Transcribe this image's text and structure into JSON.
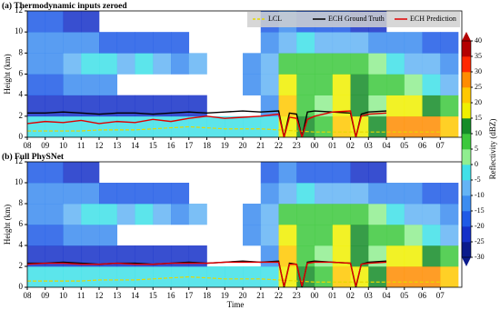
{
  "chart_data": [
    {
      "type": "heatmap-line",
      "title": "(a) Thermodynamic inputs zeroed",
      "ylabel": "Height (km)",
      "xlim": [
        0,
        24.2
      ],
      "ylim": [
        0,
        12
      ],
      "yticks": [
        0,
        2,
        4,
        6,
        8,
        10,
        12
      ],
      "xticks": [
        {
          "value": 0,
          "label": "08"
        },
        {
          "value": 1,
          "label": "09"
        },
        {
          "value": 2,
          "label": "10"
        },
        {
          "value": 3,
          "label": "11"
        },
        {
          "value": 4,
          "label": "12"
        },
        {
          "value": 5,
          "label": "13"
        },
        {
          "value": 6,
          "label": "14"
        },
        {
          "value": 7,
          "label": "15"
        },
        {
          "value": 8,
          "label": "16"
        },
        {
          "value": 9,
          "label": "17"
        },
        {
          "value": 10,
          "label": "18"
        },
        {
          "value": 11,
          "label": "19"
        },
        {
          "value": 12,
          "label": "20"
        },
        {
          "value": 13,
          "label": "21"
        },
        {
          "value": 14,
          "label": "22"
        },
        {
          "value": 15,
          "label": "23"
        },
        {
          "value": 16,
          "label": "00"
        },
        {
          "value": 17,
          "label": "01"
        },
        {
          "value": 18,
          "label": "02"
        },
        {
          "value": 19,
          "label": "03"
        },
        {
          "value": 20,
          "label": "04"
        },
        {
          "value": 21,
          "label": "05"
        },
        {
          "value": 22,
          "label": "06"
        },
        {
          "value": 23,
          "label": "07"
        }
      ],
      "legend": true,
      "series": [
        {
          "name": "LCL",
          "color": "#e6d800",
          "dash": true,
          "x": [
            0,
            1,
            2,
            3,
            4,
            5,
            6,
            7,
            8,
            9,
            10,
            11,
            12,
            13,
            14,
            15,
            16,
            17,
            18,
            19,
            20,
            21,
            22,
            23
          ],
          "values": [
            0.6,
            0.6,
            0.6,
            0.6,
            0.7,
            0.7,
            0.7,
            0.8,
            0.9,
            1.0,
            0.9,
            0.8,
            0.8,
            0.8,
            0.7,
            0.6,
            0.5,
            0.5,
            0.5,
            0.5,
            0.5,
            0.5,
            0.5,
            0.5
          ]
        },
        {
          "name": "ECH Ground Truth",
          "color": "#000000",
          "x": [
            0,
            1,
            2,
            3,
            4,
            5,
            6,
            7,
            8,
            9,
            10,
            11,
            12,
            13,
            14,
            14.3,
            14.6,
            15,
            15.3,
            15.6,
            16,
            17,
            18,
            18.3,
            18.6,
            19,
            20
          ],
          "values": [
            2.3,
            2.3,
            2.4,
            2.3,
            2.2,
            2.3,
            2.3,
            2.2,
            2.3,
            2.4,
            2.3,
            2.4,
            2.5,
            2.4,
            2.5,
            0,
            2.3,
            2.2,
            0,
            2.4,
            2.5,
            2.4,
            2.3,
            0,
            2.2,
            2.4,
            2.5
          ]
        },
        {
          "name": "ECH Prediction",
          "color": "#e00000",
          "x": [
            0,
            1,
            2,
            3,
            4,
            5,
            6,
            7,
            8,
            9,
            10,
            11,
            12,
            13,
            14,
            14.3,
            14.6,
            15,
            15.3,
            15.6,
            16,
            17,
            18,
            18.3,
            18.6,
            19,
            20
          ],
          "values": [
            1.3,
            1.5,
            1.4,
            1.6,
            1.3,
            1.5,
            1.4,
            1.7,
            1.5,
            1.8,
            2.0,
            1.8,
            1.9,
            2.0,
            2.2,
            0,
            1.9,
            1.8,
            0,
            1.7,
            2.0,
            2.4,
            2.5,
            0,
            2.0,
            2.2,
            2.3
          ]
        }
      ]
    },
    {
      "type": "heatmap-line",
      "title": "(b) Full PhySNet",
      "ylabel": "Height (km)",
      "xlabel": "Time",
      "xlim": [
        0,
        24.2
      ],
      "ylim": [
        0,
        12
      ],
      "yticks": [
        0,
        2,
        4,
        6,
        8,
        10,
        12
      ],
      "xticks": [
        {
          "value": 0,
          "label": "08"
        },
        {
          "value": 1,
          "label": "09"
        },
        {
          "value": 2,
          "label": "10"
        },
        {
          "value": 3,
          "label": "11"
        },
        {
          "value": 4,
          "label": "12"
        },
        {
          "value": 5,
          "label": "13"
        },
        {
          "value": 6,
          "label": "14"
        },
        {
          "value": 7,
          "label": "15"
        },
        {
          "value": 8,
          "label": "16"
        },
        {
          "value": 9,
          "label": "17"
        },
        {
          "value": 10,
          "label": "18"
        },
        {
          "value": 11,
          "label": "19"
        },
        {
          "value": 12,
          "label": "20"
        },
        {
          "value": 13,
          "label": "21"
        },
        {
          "value": 14,
          "label": "22"
        },
        {
          "value": 15,
          "label": "23"
        },
        {
          "value": 16,
          "label": "00"
        },
        {
          "value": 17,
          "label": "01"
        },
        {
          "value": 18,
          "label": "02"
        },
        {
          "value": 19,
          "label": "03"
        },
        {
          "value": 20,
          "label": "04"
        },
        {
          "value": 21,
          "label": "05"
        },
        {
          "value": 22,
          "label": "06"
        },
        {
          "value": 23,
          "label": "07"
        }
      ],
      "legend": false,
      "series": [
        {
          "color": "#e6d800",
          "dash": true,
          "x": [
            0,
            1,
            2,
            3,
            4,
            5,
            6,
            7,
            8,
            9,
            10,
            11,
            12,
            13,
            14,
            15,
            16,
            17,
            18,
            19,
            20,
            21,
            22,
            23
          ],
          "values": [
            0.6,
            0.6,
            0.6,
            0.6,
            0.7,
            0.7,
            0.7,
            0.8,
            0.9,
            1.0,
            0.9,
            0.8,
            0.8,
            0.8,
            0.7,
            0.6,
            0.5,
            0.5,
            0.5,
            0.5,
            0.5,
            0.5,
            0.5,
            0.5
          ]
        },
        {
          "color": "#000000",
          "x": [
            0,
            1,
            2,
            3,
            4,
            5,
            6,
            7,
            8,
            9,
            10,
            11,
            12,
            13,
            14,
            14.3,
            14.6,
            15,
            15.3,
            15.6,
            16,
            17,
            18,
            18.3,
            18.6,
            19,
            20
          ],
          "values": [
            2.3,
            2.3,
            2.4,
            2.3,
            2.2,
            2.3,
            2.3,
            2.2,
            2.3,
            2.4,
            2.3,
            2.4,
            2.5,
            2.4,
            2.5,
            0,
            2.3,
            2.2,
            0,
            2.4,
            2.5,
            2.4,
            2.3,
            0,
            2.2,
            2.4,
            2.5
          ]
        },
        {
          "color": "#e00000",
          "x": [
            0,
            1,
            2,
            3,
            4,
            5,
            6,
            7,
            8,
            9,
            10,
            11,
            12,
            13,
            14,
            14.3,
            14.6,
            15,
            15.3,
            15.6,
            16,
            17,
            18,
            18.3,
            18.6,
            19,
            20
          ],
          "values": [
            2.2,
            2.3,
            2.3,
            2.2,
            2.2,
            2.3,
            2.2,
            2.2,
            2.3,
            2.3,
            2.3,
            2.4,
            2.4,
            2.4,
            2.4,
            0.1,
            2.2,
            2.2,
            0.1,
            2.3,
            2.4,
            2.4,
            2.3,
            0.1,
            2.2,
            2.3,
            2.4
          ]
        }
      ]
    }
  ],
  "reflectivity": {
    "xbins": [
      0,
      1,
      2,
      3,
      4,
      5,
      6,
      7,
      8,
      9,
      10,
      11,
      12,
      13,
      14,
      15,
      16,
      17,
      18,
      19,
      20,
      21,
      22,
      23,
      24
    ],
    "ybins": [
      0,
      2,
      4,
      6,
      8,
      10,
      12
    ],
    "values": [
      [
        -5,
        -5,
        -5,
        -5,
        -5,
        -5,
        -5,
        -5,
        -5,
        -5,
        -5,
        -5,
        -5,
        -5,
        15,
        10,
        5,
        20,
        15,
        10,
        25,
        25,
        25,
        20
      ],
      [
        -25,
        -25,
        -25,
        -25,
        -25,
        -25,
        -25,
        -25,
        -25,
        -25,
        null,
        null,
        null,
        -15,
        20,
        5,
        0,
        15,
        10,
        0,
        15,
        15,
        10,
        5
      ],
      [
        -20,
        -20,
        -15,
        -15,
        -15,
        null,
        null,
        null,
        null,
        null,
        null,
        null,
        -15,
        -10,
        15,
        5,
        5,
        15,
        10,
        5,
        5,
        0,
        -5,
        -10
      ],
      [
        -15,
        -15,
        -10,
        -5,
        -5,
        -10,
        -5,
        -10,
        -15,
        -10,
        null,
        null,
        -15,
        -10,
        5,
        5,
        5,
        5,
        5,
        0,
        -5,
        -10,
        -10,
        -15
      ],
      [
        -15,
        -15,
        -15,
        -15,
        -20,
        -20,
        -20,
        -20,
        -20,
        null,
        null,
        null,
        null,
        -15,
        -10,
        -5,
        -10,
        -10,
        -10,
        -15,
        -15,
        -15,
        -20,
        -20
      ],
      [
        -20,
        -20,
        -25,
        -25,
        null,
        null,
        null,
        null,
        null,
        null,
        null,
        null,
        null,
        -20,
        -15,
        -20,
        -20,
        -20,
        -25,
        -25,
        null,
        null,
        null,
        null
      ]
    ],
    "colorbar": {
      "label": "Reflectivity (dBZ)",
      "lim": [
        -30,
        40
      ],
      "ticks": [
        -30,
        -25,
        -20,
        -15,
        -10,
        -5,
        0,
        5,
        10,
        15,
        20,
        25,
        30,
        35,
        40
      ],
      "colors": [
        "#0a1a8c",
        "#1530c8",
        "#1f5ae6",
        "#3c8cf0",
        "#64b4f5",
        "#40e0e8",
        "#90ee90",
        "#3cc83c",
        "#148c28",
        "#f0f000",
        "#ffc800",
        "#ff8c00",
        "#ff2800",
        "#b40000"
      ]
    }
  }
}
